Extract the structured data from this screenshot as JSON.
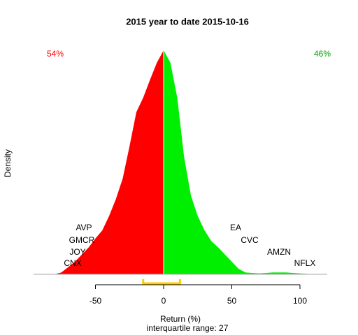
{
  "chart_data": {
    "type": "density",
    "title": "2015  year to date 2015-10-16",
    "xlabel": "Return (%)",
    "ylabel": "Density",
    "footnote": "interquartile range: 27",
    "xlim": [
      -95.4,
      120
    ],
    "ylim": [
      -0.00117,
      0.02578
    ],
    "xticks": [
      -50,
      0,
      50,
      100
    ],
    "series": [
      {
        "name": "54%",
        "color": "#ff0000",
        "x": [
          -80,
          -75,
          -70,
          -65,
          -60,
          -55,
          -50,
          -45,
          -40,
          -35,
          -30,
          -25,
          -20,
          -15,
          -10,
          -5,
          0
        ],
        "values": [
          0,
          0.0002,
          0.0008,
          0.0014,
          0.0022,
          0.003,
          0.004,
          0.0049,
          0.0065,
          0.0084,
          0.0107,
          0.0143,
          0.0181,
          0.0197,
          0.0217,
          0.0236,
          0.025
        ]
      },
      {
        "name": "46%",
        "color": "#00ee00",
        "x": [
          0,
          5,
          10,
          15,
          20,
          25,
          30,
          35,
          40,
          45,
          50,
          55,
          60,
          70,
          80,
          90,
          100,
          110
        ],
        "values": [
          0.025,
          0.0236,
          0.0197,
          0.0131,
          0.0088,
          0.0065,
          0.0049,
          0.0037,
          0.003,
          0.0022,
          0.0014,
          0.0006,
          0.0002,
          0.0001,
          0.0002,
          0.0002,
          0.0001,
          0
        ]
      }
    ],
    "iqr": [
      -15,
      12
    ],
    "iqr_color": "#ffcc00",
    "annotations": [
      "AVP",
      "GMCR",
      "JOY",
      "CNX",
      "EA",
      "CVC",
      "AMZN",
      "NFLX"
    ]
  }
}
